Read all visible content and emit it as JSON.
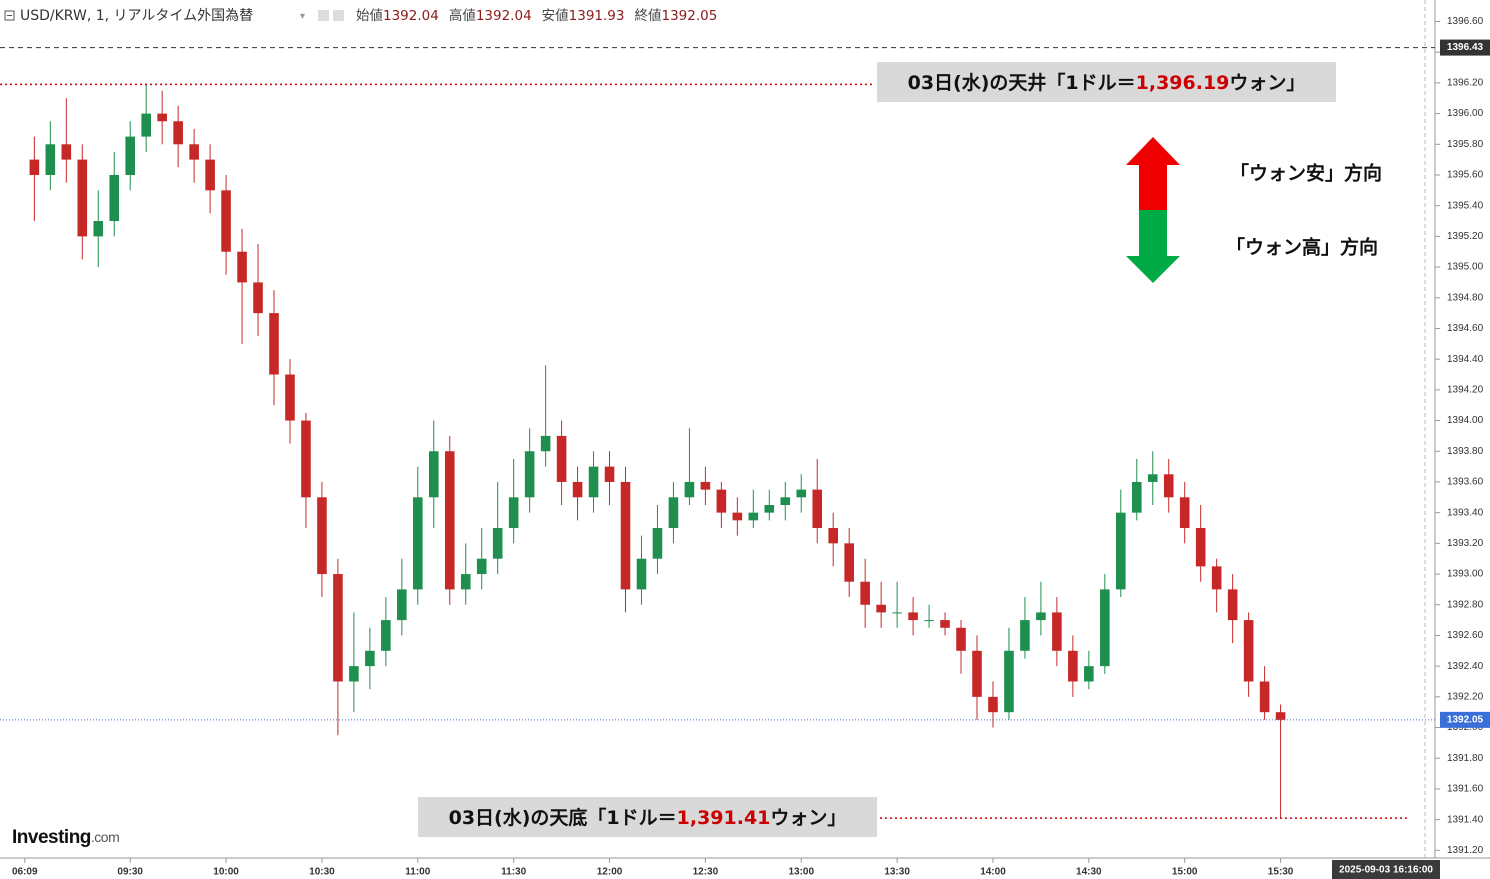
{
  "chart_data": {
    "type": "candlestick",
    "title": "USD/KRW, 1, リアルタイム外国為替",
    "ohlc_header": [
      {
        "label": "始値",
        "value": 1392.04
      },
      {
        "label": "高値",
        "value": 1392.04
      },
      {
        "label": "安値",
        "value": 1391.93
      },
      {
        "label": "終値",
        "value": 1392.05
      }
    ],
    "up_color": "#1e8f4e",
    "down_color": "#c62828",
    "candles": {
      "x": [
        -30,
        -25,
        -20,
        -15,
        -10,
        -5,
        0,
        5,
        10,
        15,
        20,
        25,
        30,
        35,
        40,
        45,
        50,
        55,
        60,
        65,
        70,
        75,
        80,
        85,
        90,
        95,
        100,
        105,
        110,
        115,
        120,
        125,
        130,
        135,
        140,
        145,
        150,
        155,
        160,
        165,
        170,
        175,
        180,
        185,
        190,
        195,
        200,
        205,
        210,
        215,
        220,
        225,
        230,
        235,
        240,
        245,
        250,
        255,
        260,
        265,
        270,
        275,
        280,
        285,
        290,
        295,
        300,
        305,
        310,
        315,
        320,
        325,
        330,
        335,
        340,
        345,
        350,
        355,
        360
      ],
      "open": [
        1395.7,
        1395.6,
        1395.8,
        1395.7,
        1395.2,
        1395.3,
        1395.6,
        1395.85,
        1396.0,
        1395.95,
        1395.8,
        1395.7,
        1395.5,
        1395.1,
        1394.9,
        1394.7,
        1394.3,
        1394.0,
        1393.5,
        1393.0,
        1392.3,
        1392.4,
        1392.5,
        1392.7,
        1392.9,
        1393.5,
        1393.8,
        1392.9,
        1393.0,
        1393.1,
        1393.3,
        1393.5,
        1393.8,
        1393.9,
        1393.6,
        1393.5,
        1393.7,
        1393.6,
        1392.9,
        1393.1,
        1393.3,
        1393.5,
        1393.6,
        1393.55,
        1393.4,
        1393.35,
        1393.4,
        1393.45,
        1393.5,
        1393.55,
        1393.3,
        1393.2,
        1392.95,
        1392.8,
        1392.75,
        1392.75,
        1392.7,
        1392.7,
        1392.65,
        1392.5,
        1392.2,
        1392.1,
        1392.5,
        1392.7,
        1392.75,
        1392.5,
        1392.3,
        1392.4,
        1392.9,
        1393.4,
        1393.6,
        1393.65,
        1393.5,
        1393.3,
        1393.05,
        1392.9,
        1392.7,
        1392.3,
        1392.1
      ],
      "high": [
        1395.85,
        1395.95,
        1396.1,
        1395.8,
        1395.5,
        1395.75,
        1395.95,
        1396.19,
        1396.15,
        1396.05,
        1395.9,
        1395.8,
        1395.6,
        1395.25,
        1395.15,
        1394.85,
        1394.4,
        1394.05,
        1393.6,
        1393.1,
        1392.75,
        1392.65,
        1392.85,
        1393.1,
        1393.7,
        1394.0,
        1393.9,
        1393.2,
        1393.3,
        1393.6,
        1393.75,
        1393.95,
        1394.36,
        1394.0,
        1393.7,
        1393.8,
        1393.8,
        1393.7,
        1393.25,
        1393.45,
        1393.6,
        1393.95,
        1393.7,
        1393.6,
        1393.5,
        1393.55,
        1393.55,
        1393.6,
        1393.65,
        1393.75,
        1393.4,
        1393.3,
        1393.1,
        1392.95,
        1392.95,
        1392.85,
        1392.8,
        1392.75,
        1392.7,
        1392.6,
        1392.3,
        1392.65,
        1392.85,
        1392.95,
        1392.85,
        1392.6,
        1392.5,
        1393.0,
        1393.55,
        1393.75,
        1393.8,
        1393.75,
        1393.6,
        1393.45,
        1393.1,
        1393.0,
        1392.75,
        1392.4,
        1392.15
      ],
      "low": [
        1395.3,
        1395.5,
        1395.55,
        1395.05,
        1395.0,
        1395.2,
        1395.5,
        1395.75,
        1395.8,
        1395.65,
        1395.55,
        1395.35,
        1394.95,
        1394.5,
        1394.55,
        1394.1,
        1393.85,
        1393.3,
        1392.85,
        1391.95,
        1392.1,
        1392.25,
        1392.4,
        1392.6,
        1392.8,
        1393.3,
        1392.8,
        1392.8,
        1392.9,
        1393.0,
        1393.2,
        1393.4,
        1393.7,
        1393.45,
        1393.35,
        1393.4,
        1393.45,
        1392.75,
        1392.8,
        1393.0,
        1393.2,
        1393.45,
        1393.45,
        1393.3,
        1393.25,
        1393.3,
        1393.35,
        1393.35,
        1393.4,
        1393.2,
        1393.05,
        1392.85,
        1392.65,
        1392.65,
        1392.65,
        1392.6,
        1392.65,
        1392.6,
        1392.35,
        1392.05,
        1392.0,
        1392.05,
        1392.45,
        1392.6,
        1392.4,
        1392.2,
        1392.25,
        1392.35,
        1392.85,
        1393.35,
        1393.45,
        1393.4,
        1393.2,
        1392.95,
        1392.75,
        1392.55,
        1392.2,
        1392.05,
        1391.41
      ],
      "close": [
        1395.6,
        1395.8,
        1395.7,
        1395.2,
        1395.3,
        1395.6,
        1395.85,
        1396.0,
        1395.95,
        1395.8,
        1395.7,
        1395.5,
        1395.1,
        1394.9,
        1394.7,
        1394.3,
        1394.0,
        1393.5,
        1393.0,
        1392.3,
        1392.4,
        1392.5,
        1392.7,
        1392.9,
        1393.5,
        1393.8,
        1392.9,
        1393.0,
        1393.1,
        1393.3,
        1393.5,
        1393.8,
        1393.9,
        1393.6,
        1393.5,
        1393.7,
        1393.6,
        1392.9,
        1393.1,
        1393.3,
        1393.5,
        1393.6,
        1393.55,
        1393.4,
        1393.35,
        1393.4,
        1393.45,
        1393.5,
        1393.55,
        1393.3,
        1393.2,
        1392.95,
        1392.8,
        1392.75,
        1392.75,
        1392.7,
        1392.7,
        1392.65,
        1392.5,
        1392.2,
        1392.1,
        1392.5,
        1392.7,
        1392.75,
        1392.5,
        1392.3,
        1392.4,
        1392.9,
        1393.4,
        1393.6,
        1393.65,
        1393.5,
        1393.3,
        1393.05,
        1392.9,
        1392.7,
        1392.3,
        1392.1,
        1392.05
      ]
    },
    "xlim": [
      -40.75,
      405.2
    ],
    "xticks": [
      {
        "value": -33,
        "label": "06:09"
      },
      {
        "value": 0,
        "label": "09:30"
      },
      {
        "value": 30,
        "label": "10:00"
      },
      {
        "value": 60,
        "label": "10:30"
      },
      {
        "value": 90,
        "label": "11:00"
      },
      {
        "value": 120,
        "label": "11:30"
      },
      {
        "value": 150,
        "label": "12:00"
      },
      {
        "value": 180,
        "label": "12:30"
      },
      {
        "value": 210,
        "label": "13:00"
      },
      {
        "value": 240,
        "label": "13:30"
      },
      {
        "value": 270,
        "label": "14:00"
      },
      {
        "value": 300,
        "label": "14:30"
      },
      {
        "value": 330,
        "label": "15:00"
      },
      {
        "value": 360,
        "label": "15:30"
      }
    ],
    "ylim": [
      1391.15,
      1396.74
    ],
    "yticks": [
      {
        "value": 1391.2,
        "label": "1391.20"
      },
      {
        "value": 1391.4,
        "label": "1391.40"
      },
      {
        "value": 1391.6,
        "label": "1391.60"
      },
      {
        "value": 1391.8,
        "label": "1391.80"
      },
      {
        "value": 1392.0,
        "label": "1392.00"
      },
      {
        "value": 1392.2,
        "label": "1392.20"
      },
      {
        "value": 1392.4,
        "label": "1392.40"
      },
      {
        "value": 1392.6,
        "label": "1392.60"
      },
      {
        "value": 1392.8,
        "label": "1392.80"
      },
      {
        "value": 1393.0,
        "label": "1393.00"
      },
      {
        "value": 1393.2,
        "label": "1393.20"
      },
      {
        "value": 1393.4,
        "label": "1393.40"
      },
      {
        "value": 1393.6,
        "label": "1393.60"
      },
      {
        "value": 1393.8,
        "label": "1393.80"
      },
      {
        "value": 1394.0,
        "label": "1394.00"
      },
      {
        "value": 1394.2,
        "label": "1394.20"
      },
      {
        "value": 1394.4,
        "label": "1394.40"
      },
      {
        "value": 1394.6,
        "label": "1394.60"
      },
      {
        "value": 1394.8,
        "label": "1394.80"
      },
      {
        "value": 1395.0,
        "label": "1395.00"
      },
      {
        "value": 1395.2,
        "label": "1395.20"
      },
      {
        "value": 1395.4,
        "label": "1395.40"
      },
      {
        "value": 1395.6,
        "label": "1395.60"
      },
      {
        "value": 1395.8,
        "label": "1395.80"
      },
      {
        "value": 1396.0,
        "label": "1396.00"
      },
      {
        "value": 1396.2,
        "label": "1396.20"
      },
      {
        "value": 1396.4,
        "label": "1396.40"
      },
      {
        "value": 1396.6,
        "label": "1396.60"
      }
    ],
    "price_lines": [
      {
        "value": 1396.43,
        "color": "#333333"
      },
      {
        "value": 1392.05,
        "color": "#3b6fd8"
      }
    ],
    "annotations": [
      {
        "value": 1396.19,
        "prefix": "03日(水)の天井「1ドル＝",
        "value_label": "1,396.19",
        "suffix": "ウォン」",
        "color": "#cc0000"
      },
      {
        "value": 1391.41,
        "prefix": "03日(水)の天底「1ドル＝",
        "value_label": "1,391.41",
        "suffix": "ウォン」",
        "color": "#cc0000"
      }
    ],
    "arrow_labels": [
      "「ウォン安」方向",
      "「ウォン高」方向"
    ],
    "logo": {
      "main": "Investing",
      "suffix": ".com"
    },
    "timestamp": "2025-09-03 16:16:00"
  }
}
